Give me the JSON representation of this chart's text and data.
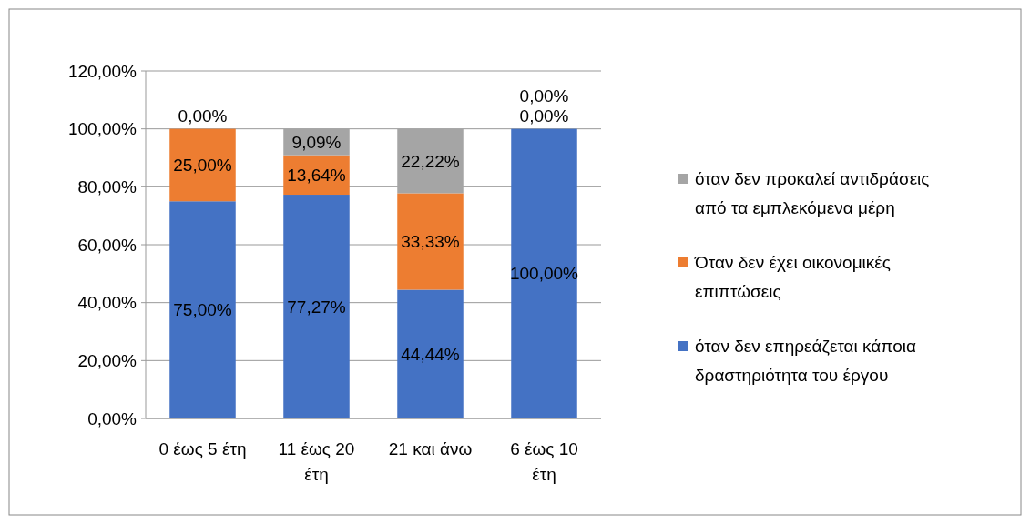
{
  "chart_data": {
    "type": "bar",
    "stacked": true,
    "categories": [
      "0 έως 5 έτη",
      "11 έως 20 έτη",
      "21 και άνω",
      "6 έως 10 έτη"
    ],
    "series": [
      {
        "name": "όταν δεν επηρεάζεται κάποια δραστηριότητα του έργου",
        "color": "#4472c4",
        "values": [
          75,
          77.27,
          44.44,
          100
        ],
        "value_labels": [
          "75,00%",
          "77,27%",
          "44,44%",
          "100,00%"
        ]
      },
      {
        "name": "Όταν δεν έχει οικονομικές επιπτώσεις",
        "color": "#ed7d31",
        "values": [
          25,
          13.64,
          33.33,
          0
        ],
        "value_labels": [
          "25,00%",
          "13,64%",
          "33,33%",
          "0,00%"
        ]
      },
      {
        "name": "όταν δεν προκαλεί αντιδράσεις από τα εμπλεκόμενα μέρη",
        "color": "#a5a5a5",
        "values": [
          0,
          9.09,
          22.22,
          0
        ],
        "value_labels": [
          "0,00%",
          "9,09%",
          "22,22%",
          "0,00%"
        ]
      }
    ],
    "ylim": [
      0,
      120
    ],
    "yticks": [
      {
        "value": 0,
        "label": "0,00%"
      },
      {
        "value": 20,
        "label": "20,00%"
      },
      {
        "value": 40,
        "label": "40,00%"
      },
      {
        "value": 60,
        "label": "60,00%"
      },
      {
        "value": 80,
        "label": "80,00%"
      },
      {
        "value": 100,
        "label": "100,00%"
      },
      {
        "value": 120,
        "label": "120,00%"
      }
    ],
    "grid": "y",
    "legend": "right"
  }
}
